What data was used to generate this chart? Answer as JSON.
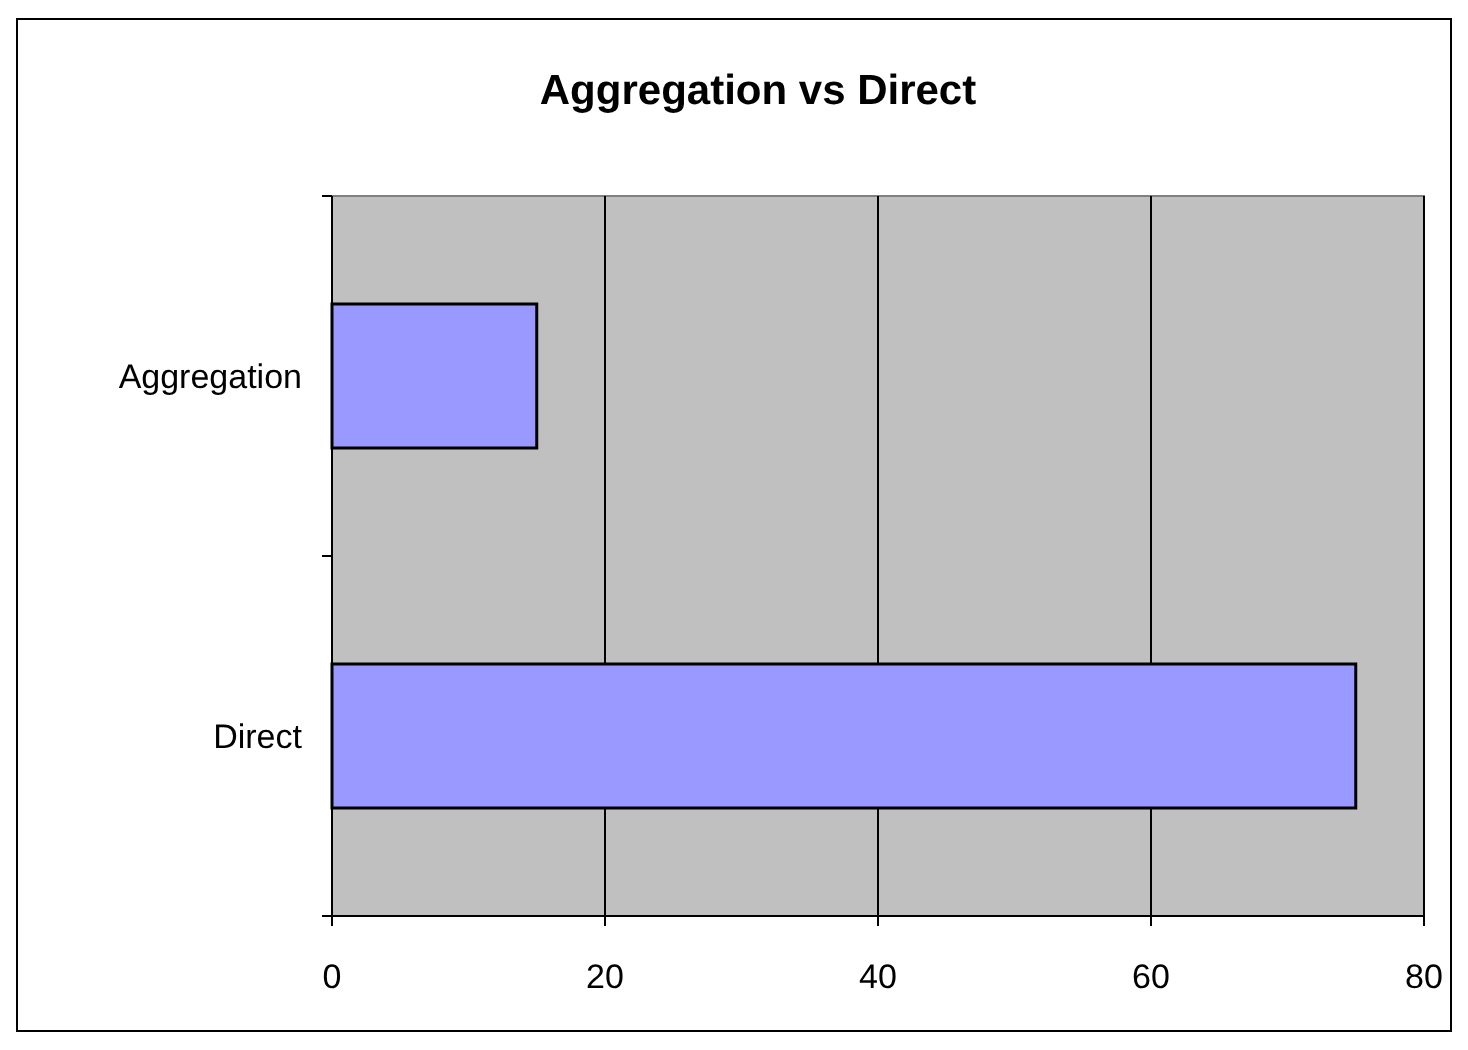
{
  "chart_data": {
    "type": "bar",
    "title": "Aggregation vs Direct",
    "orientation": "horizontal",
    "categories": [
      "Aggregation",
      "Direct"
    ],
    "values": [
      15,
      75
    ],
    "color": "#9999ff",
    "xlim": [
      0,
      80
    ],
    "xticks": [
      0,
      20,
      40,
      60,
      80
    ],
    "grid": "x"
  }
}
